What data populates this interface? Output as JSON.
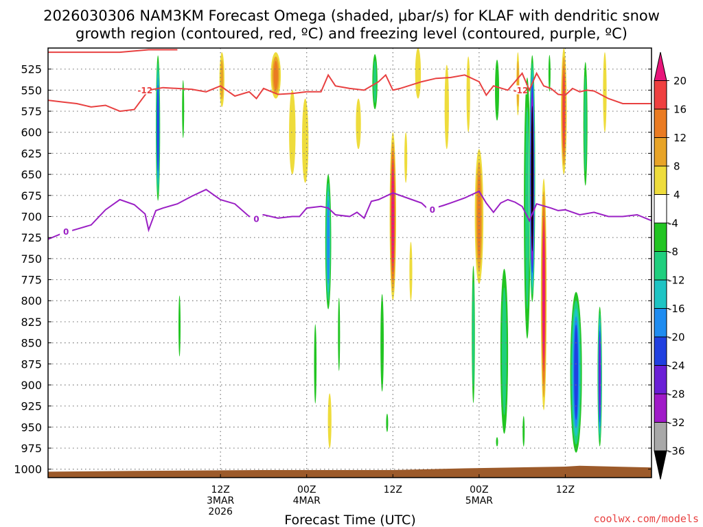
{
  "title": {
    "line1": "2026030306 NAM3KM Forecast Omega (shaded, μbar/s) for KLAF with dendritic snow",
    "line2": "growth region (contoured, red, ºC) and freezing level (contoured, purple, ºC)"
  },
  "credit": "coolwx.com/models",
  "colors": {
    "red_contour": "#e84040",
    "purple_contour": "#9a1fc4",
    "ground": "#9c5a2a",
    "grid": "#777777"
  },
  "chart_data": {
    "type": "heatmap",
    "xlabel": "Forecast Time (UTC)",
    "ylabel": "",
    "x_range_hours": [
      -12,
      72
    ],
    "y_range_hpa": [
      500,
      1010
    ],
    "y_ticks": [
      525,
      550,
      575,
      600,
      625,
      650,
      675,
      700,
      725,
      750,
      775,
      800,
      825,
      850,
      875,
      900,
      925,
      950,
      975,
      1000
    ],
    "x_ticks": [
      {
        "hour": 12,
        "label1": "12Z",
        "label2": "3MAR",
        "label3": "2026"
      },
      {
        "hour": 24,
        "label1": "00Z",
        "label2": "4MAR",
        "label3": ""
      },
      {
        "hour": 36,
        "label1": "12Z",
        "label2": "",
        "label3": ""
      },
      {
        "hour": 48,
        "label1": "00Z",
        "label2": "5MAR",
        "label3": ""
      },
      {
        "hour": 60,
        "label1": "12Z",
        "label2": "",
        "label3": ""
      }
    ],
    "colorbar": {
      "labels": [
        "20",
        "16",
        "12",
        "8",
        "4",
        "-4",
        "-8",
        "-12",
        "-16",
        "-20",
        "-24",
        "-28",
        "-32",
        "-36"
      ],
      "bins": [
        {
          "lo": 20,
          "hi": 24,
          "color": "#e8157a"
        },
        {
          "lo": 16,
          "hi": 20,
          "color": "#ef4040"
        },
        {
          "lo": 12,
          "hi": 16,
          "color": "#ea7b22"
        },
        {
          "lo": 8,
          "hi": 12,
          "color": "#e8a428"
        },
        {
          "lo": 4,
          "hi": 8,
          "color": "#eedc3c"
        },
        {
          "lo": -4,
          "hi": 4,
          "color": "#ffffff"
        },
        {
          "lo": -8,
          "hi": -4,
          "color": "#22c522"
        },
        {
          "lo": -12,
          "hi": -8,
          "color": "#20cf7e"
        },
        {
          "lo": -16,
          "hi": -12,
          "color": "#1ec4c4"
        },
        {
          "lo": -20,
          "hi": -16,
          "color": "#1f8cf0"
        },
        {
          "lo": -24,
          "hi": -20,
          "color": "#2040e0"
        },
        {
          "lo": -28,
          "hi": -24,
          "color": "#6a1fd6"
        },
        {
          "lo": -32,
          "hi": -28,
          "color": "#a01ac8"
        },
        {
          "lo": -36,
          "hi": -32,
          "color": "#a8a8a8"
        },
        {
          "lo": -40,
          "hi": -36,
          "color": "#000000"
        }
      ]
    },
    "omega_features": [
      {
        "t": 3.3,
        "p_top": 500,
        "p_bot": 690,
        "w": 0.7,
        "peak": -24
      },
      {
        "t": 12.2,
        "p_top": 505,
        "p_bot": 570,
        "w": 0.7,
        "peak": 8
      },
      {
        "t": 6.8,
        "p_top": 525,
        "p_bot": 620,
        "w": 0.5,
        "peak": -8
      },
      {
        "t": 6.3,
        "p_top": 780,
        "p_bot": 880,
        "w": 0.4,
        "peak": -8
      },
      {
        "t": 19.7,
        "p_top": 505,
        "p_bot": 560,
        "w": 1.4,
        "peak": 12
      },
      {
        "t": 22.0,
        "p_top": 550,
        "p_bot": 650,
        "w": 0.9,
        "peak": 6
      },
      {
        "t": 23.8,
        "p_top": 560,
        "p_bot": 660,
        "w": 0.9,
        "peak": 6
      },
      {
        "t": 27.0,
        "p_top": 640,
        "p_bot": 820,
        "w": 1.0,
        "peak": -20
      },
      {
        "t": 25.2,
        "p_top": 810,
        "p_bot": 940,
        "w": 0.6,
        "peak": -8
      },
      {
        "t": 28.5,
        "p_top": 780,
        "p_bot": 900,
        "w": 0.5,
        "peak": -8
      },
      {
        "t": 27.2,
        "p_top": 910,
        "p_bot": 975,
        "w": 0.5,
        "peak": 6
      },
      {
        "t": 31.2,
        "p_top": 560,
        "p_bot": 620,
        "w": 0.7,
        "peak": 6
      },
      {
        "t": 33.5,
        "p_top": 500,
        "p_bot": 580,
        "w": 1.0,
        "peak": -12
      },
      {
        "t": 36.0,
        "p_top": 600,
        "p_bot": 800,
        "w": 0.9,
        "peak": 20
      },
      {
        "t": 34.5,
        "p_top": 770,
        "p_bot": 930,
        "w": 0.8,
        "peak": -8
      },
      {
        "t": 38.5,
        "p_top": 730,
        "p_bot": 800,
        "w": 0.4,
        "peak": 6
      },
      {
        "t": 39.5,
        "p_top": 500,
        "p_bot": 560,
        "w": 0.8,
        "peak": 6
      },
      {
        "t": 43.5,
        "p_top": 520,
        "p_bot": 620,
        "w": 0.6,
        "peak": 6
      },
      {
        "t": 46.5,
        "p_top": 510,
        "p_bot": 600,
        "w": 0.5,
        "peak": 6
      },
      {
        "t": 48.0,
        "p_top": 620,
        "p_bot": 780,
        "w": 1.2,
        "peak": 12
      },
      {
        "t": 47.2,
        "p_top": 740,
        "p_bot": 940,
        "w": 0.6,
        "peak": -12
      },
      {
        "t": 50.5,
        "p_top": 500,
        "p_bot": 600,
        "w": 1.0,
        "peak": -8
      },
      {
        "t": 51.5,
        "p_top": 740,
        "p_bot": 980,
        "w": 1.5,
        "peak": -12
      },
      {
        "t": 53.4,
        "p_top": 505,
        "p_bot": 580,
        "w": 0.4,
        "peak": 10
      },
      {
        "t": 54.7,
        "p_top": 500,
        "p_bot": 880,
        "w": 1.3,
        "peak": -12
      },
      {
        "t": 55.4,
        "p_top": 500,
        "p_bot": 810,
        "w": 0.9,
        "peak": -40
      },
      {
        "t": 57.0,
        "p_top": 655,
        "p_bot": 930,
        "w": 0.8,
        "peak": 22
      },
      {
        "t": 57.8,
        "p_top": 500,
        "p_bot": 560,
        "w": 0.5,
        "peak": -8
      },
      {
        "t": 59.8,
        "p_top": 500,
        "p_bot": 650,
        "w": 0.8,
        "peak": 16
      },
      {
        "t": 61.5,
        "p_top": 780,
        "p_bot": 990,
        "w": 1.9,
        "peak": -24
      },
      {
        "t": 62.8,
        "p_top": 500,
        "p_bot": 680,
        "w": 0.8,
        "peak": -12
      },
      {
        "t": 64.8,
        "p_top": 800,
        "p_bot": 980,
        "w": 0.7,
        "peak": -28
      },
      {
        "t": 65.5,
        "p_top": 505,
        "p_bot": 600,
        "w": 0.5,
        "peak": 6
      },
      {
        "t": 35.2,
        "p_top": 930,
        "p_bot": 960,
        "w": 0.4,
        "peak": -8
      },
      {
        "t": 50.5,
        "p_top": 960,
        "p_bot": 975,
        "w": 0.3,
        "peak": -8
      },
      {
        "t": 37.8,
        "p_top": 600,
        "p_bot": 660,
        "w": 0.4,
        "peak": 6
      },
      {
        "t": 54.2,
        "p_top": 930,
        "p_bot": 980,
        "w": 0.5,
        "peak": -8
      }
    ],
    "contours": [
      {
        "name": "-12C isotherm",
        "label": "-12",
        "color": "#e84040",
        "label_points": [
          [
            1.5,
            550
          ],
          [
            53.8,
            550
          ]
        ],
        "top": [
          [
            -12,
            505
          ],
          [
            -10,
            505
          ],
          [
            -6,
            505
          ],
          [
            -2,
            505
          ],
          [
            2,
            502
          ],
          [
            6,
            502
          ]
        ],
        "points": [
          [
            -12,
            562
          ],
          [
            -10,
            564
          ],
          [
            -8,
            566
          ],
          [
            -6,
            570
          ],
          [
            -4,
            568
          ],
          [
            -2,
            575
          ],
          [
            0,
            573
          ],
          [
            2,
            550
          ],
          [
            4,
            547
          ],
          [
            6,
            548
          ],
          [
            8,
            549
          ],
          [
            10,
            552
          ],
          [
            12,
            545
          ],
          [
            14,
            557
          ],
          [
            16,
            552
          ],
          [
            17,
            560
          ],
          [
            18,
            548
          ],
          [
            20,
            555
          ],
          [
            22,
            554
          ],
          [
            24,
            552
          ],
          [
            26,
            552
          ],
          [
            27,
            532
          ],
          [
            28,
            545
          ],
          [
            30,
            548
          ],
          [
            32,
            550
          ],
          [
            34,
            540
          ],
          [
            35,
            532
          ],
          [
            36,
            550
          ],
          [
            37,
            548
          ],
          [
            40,
            540
          ],
          [
            42,
            536
          ],
          [
            44,
            535
          ],
          [
            46,
            532
          ],
          [
            48,
            540
          ],
          [
            49,
            556
          ],
          [
            50,
            545
          ],
          [
            52,
            550
          ],
          [
            53,
            540
          ],
          [
            54,
            530
          ],
          [
            55,
            550
          ],
          [
            56,
            530
          ],
          [
            57,
            545
          ],
          [
            58,
            548
          ],
          [
            59,
            555
          ],
          [
            60,
            556
          ],
          [
            61,
            548
          ],
          [
            62,
            552
          ],
          [
            63,
            550
          ],
          [
            64,
            551
          ],
          [
            66,
            560
          ],
          [
            68,
            566
          ],
          [
            72,
            566
          ]
        ]
      },
      {
        "name": "0C freezing level",
        "label": "0",
        "color": "#9a1fc4",
        "label_points": [
          [
            -9.5,
            718
          ],
          [
            17,
            703
          ],
          [
            41.5,
            692
          ]
        ],
        "points": [
          [
            -12,
            727
          ],
          [
            -10,
            720
          ],
          [
            -8,
            715
          ],
          [
            -6,
            710
          ],
          [
            -4,
            692
          ],
          [
            -2,
            680
          ],
          [
            0,
            686
          ],
          [
            1.5,
            697
          ],
          [
            2,
            716
          ],
          [
            3,
            693
          ],
          [
            4,
            690
          ],
          [
            6,
            685
          ],
          [
            8,
            676
          ],
          [
            10,
            668
          ],
          [
            12,
            680
          ],
          [
            14,
            685
          ],
          [
            16,
            700
          ],
          [
            18,
            698
          ],
          [
            20,
            702
          ],
          [
            22,
            700
          ],
          [
            23,
            700
          ],
          [
            24,
            690
          ],
          [
            26,
            688
          ],
          [
            27,
            690
          ],
          [
            28,
            698
          ],
          [
            30,
            700
          ],
          [
            31,
            695
          ],
          [
            32,
            702
          ],
          [
            33,
            682
          ],
          [
            34,
            680
          ],
          [
            36,
            672
          ],
          [
            38,
            678
          ],
          [
            40,
            684
          ],
          [
            41,
            692
          ],
          [
            43,
            687
          ],
          [
            44,
            684
          ],
          [
            46,
            678
          ],
          [
            48,
            670
          ],
          [
            49,
            684
          ],
          [
            50,
            695
          ],
          [
            51,
            684
          ],
          [
            52,
            680
          ],
          [
            53,
            683
          ],
          [
            54,
            688
          ],
          [
            55,
            705
          ],
          [
            56,
            685
          ],
          [
            58,
            690
          ],
          [
            59,
            693
          ],
          [
            60,
            692
          ],
          [
            62,
            698
          ],
          [
            64,
            695
          ],
          [
            66,
            700
          ],
          [
            68,
            700
          ],
          [
            70,
            698
          ],
          [
            72,
            705
          ]
        ]
      }
    ],
    "ground_surface_hpa": [
      [
        -12,
        1003
      ],
      [
        0,
        1002
      ],
      [
        18,
        1001
      ],
      [
        36,
        1001
      ],
      [
        46,
        999
      ],
      [
        60,
        997
      ],
      [
        62,
        996
      ],
      [
        72,
        998
      ]
    ]
  }
}
